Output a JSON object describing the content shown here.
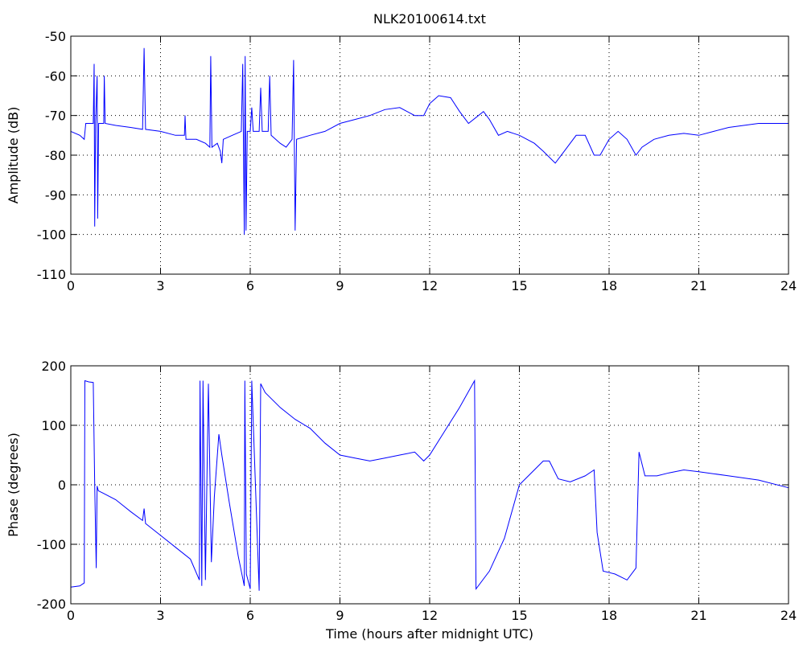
{
  "chart_data": [
    {
      "type": "line",
      "title": "NLK20100614.txt",
      "ylabel": "Amplitude (dB)",
      "x": [
        0,
        0.3,
        0.45,
        0.5,
        0.75,
        0.78,
        0.8,
        0.83,
        0.88,
        0.9,
        0.93,
        1.1,
        1.12,
        1.15,
        1.5,
        2.0,
        2.4,
        2.45,
        2.5,
        3.0,
        3.5,
        3.8,
        3.82,
        3.85,
        4.2,
        4.5,
        4.65,
        4.68,
        4.72,
        4.9,
        5.0,
        5.05,
        5.1,
        5.4,
        5.7,
        5.75,
        5.8,
        5.83,
        5.86,
        5.9,
        6.0,
        6.05,
        6.1,
        6.3,
        6.35,
        6.4,
        6.6,
        6.65,
        6.7,
        7.0,
        7.2,
        7.4,
        7.45,
        7.5,
        7.55,
        8.0,
        8.5,
        9.0,
        9.5,
        10.0,
        10.5,
        11.0,
        11.5,
        11.8,
        12.0,
        12.3,
        12.7,
        13.0,
        13.3,
        13.8,
        14.0,
        14.3,
        14.6,
        15.0,
        15.5,
        15.8,
        16.2,
        16.5,
        16.9,
        17.2,
        17.5,
        17.7,
        18.0,
        18.3,
        18.6,
        18.9,
        19.1,
        19.5,
        20,
        20.5,
        21,
        21.5,
        22,
        23,
        24
      ],
      "series": [
        {
          "color": "#0000ff",
          "values": [
            -74,
            -75,
            -76,
            -72,
            -72,
            -57,
            -98,
            -72,
            -60,
            -96,
            -72,
            -72,
            -60,
            -72,
            -72.5,
            -73,
            -73.5,
            -53,
            -73.5,
            -74,
            -75,
            -75,
            -70,
            -76,
            -76,
            -77,
            -78,
            -55,
            -78,
            -77,
            -79,
            -82,
            -76,
            -75,
            -74,
            -57,
            -100,
            -55,
            -99,
            -74,
            -74,
            -68,
            -74,
            -74,
            -63,
            -74,
            -74,
            -60,
            -75,
            -77,
            -78,
            -76,
            -56,
            -99,
            -76,
            -75,
            -74,
            -72,
            -71,
            -70,
            -68.5,
            -68,
            -70,
            -70,
            -67,
            -65,
            -65.5,
            -69,
            -72,
            -69,
            -71,
            -75,
            -74,
            -75,
            -77,
            -79,
            -82,
            -79,
            -75,
            -75,
            -80,
            -80,
            -76,
            -74,
            -76,
            -80,
            -78,
            -76,
            -75,
            -74.5,
            -75,
            -74,
            -73,
            -72,
            -72
          ]
        }
      ],
      "xlim": [
        0,
        24
      ],
      "xticks": [
        0,
        3,
        6,
        9,
        12,
        15,
        18,
        21,
        24
      ],
      "ylim": [
        -110,
        -50
      ],
      "yticks": [
        -110,
        -100,
        -90,
        -80,
        -70,
        -60,
        -50
      ],
      "grid": true
    },
    {
      "type": "line",
      "ylabel": "Phase (degrees)",
      "xlabel": "Time (hours after midnight UTC)",
      "x": [
        0,
        0.3,
        0.45,
        0.47,
        0.6,
        0.75,
        0.8,
        0.85,
        0.88,
        0.92,
        1.0,
        1.5,
        2.0,
        2.4,
        2.45,
        2.5,
        3.0,
        3.5,
        4.0,
        4.3,
        4.32,
        4.38,
        4.42,
        4.5,
        4.6,
        4.7,
        4.8,
        4.95,
        5.05,
        5.3,
        5.6,
        5.8,
        5.82,
        5.87,
        6.0,
        6.05,
        6.3,
        6.35,
        6.5,
        7.0,
        7.5,
        8.0,
        8.5,
        9.0,
        9.5,
        10.0,
        10.5,
        11.0,
        11.5,
        11.8,
        12.0,
        12.5,
        13.0,
        13.5,
        13.55,
        14.0,
        14.5,
        15.0,
        15.5,
        15.8,
        16.0,
        16.3,
        16.7,
        17.2,
        17.5,
        17.6,
        17.8,
        18.2,
        18.6,
        18.9,
        19.0,
        19.2,
        19.6,
        20.0,
        20.5,
        21,
        22,
        23,
        24
      ],
      "series": [
        {
          "color": "#0000ff",
          "values": [
            -172,
            -170,
            -165,
            175,
            173,
            172,
            0,
            -140,
            -2,
            -10,
            -12,
            -25,
            -45,
            -60,
            -40,
            -65,
            -85,
            -105,
            -125,
            -160,
            175,
            -170,
            175,
            -160,
            170,
            -130,
            -20,
            85,
            50,
            -30,
            -120,
            -170,
            175,
            -150,
            -175,
            175,
            -178,
            170,
            155,
            130,
            110,
            95,
            70,
            50,
            45,
            40,
            45,
            50,
            55,
            40,
            50,
            90,
            130,
            175,
            -175,
            -145,
            -90,
            0,
            25,
            40,
            40,
            10,
            5,
            15,
            25,
            -80,
            -145,
            -150,
            -160,
            -140,
            55,
            15,
            15,
            20,
            25,
            22,
            15,
            8,
            -5
          ]
        }
      ],
      "xlim": [
        0,
        24
      ],
      "xticks": [
        0,
        3,
        6,
        9,
        12,
        15,
        18,
        21,
        24
      ],
      "ylim": [
        -200,
        200
      ],
      "yticks": [
        -200,
        -100,
        0,
        100,
        200
      ],
      "grid": true
    }
  ]
}
